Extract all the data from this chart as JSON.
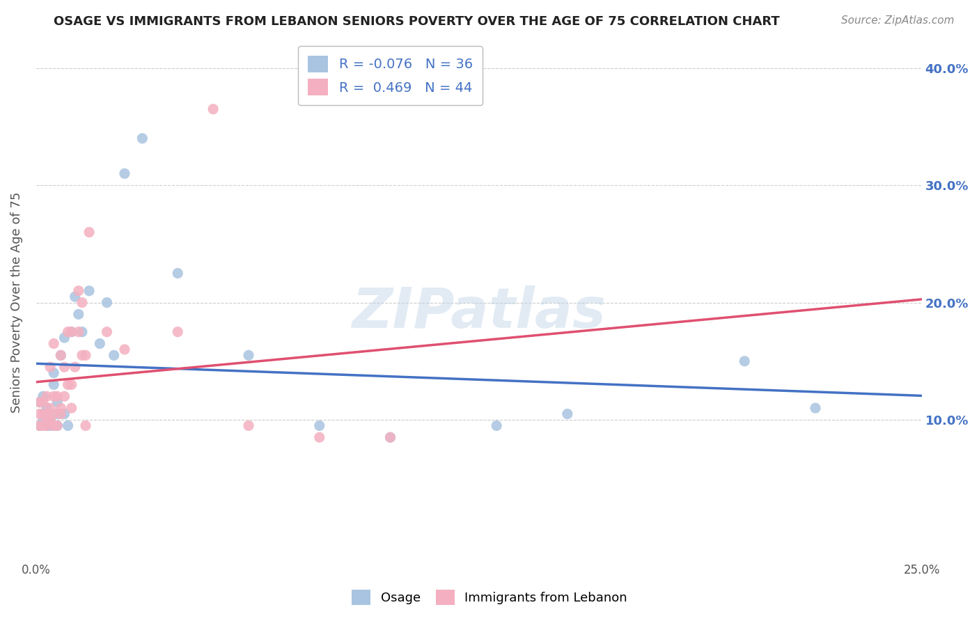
{
  "title": "OSAGE VS IMMIGRANTS FROM LEBANON SENIORS POVERTY OVER THE AGE OF 75 CORRELATION CHART",
  "source": "Source: ZipAtlas.com",
  "ylabel": "Seniors Poverty Over the Age of 75",
  "series": [
    {
      "name": "Osage",
      "R": -0.076,
      "N": 36,
      "color": "#a8c4e0",
      "line_color": "#4472c4",
      "line_style": "-",
      "x": [
        0.001,
        0.001,
        0.002,
        0.002,
        0.003,
        0.003,
        0.003,
        0.004,
        0.004,
        0.005,
        0.005,
        0.006,
        0.006,
        0.006,
        0.007,
        0.008,
        0.008,
        0.009,
        0.01,
        0.011,
        0.012,
        0.013,
        0.015,
        0.018,
        0.02,
        0.022,
        0.025,
        0.03,
        0.04,
        0.06,
        0.08,
        0.1,
        0.13,
        0.15,
        0.2,
        0.22
      ],
      "y": [
        0.115,
        0.095,
        0.1,
        0.12,
        0.095,
        0.105,
        0.11,
        0.1,
        0.095,
        0.13,
        0.14,
        0.105,
        0.095,
        0.115,
        0.155,
        0.105,
        0.17,
        0.095,
        0.175,
        0.205,
        0.19,
        0.175,
        0.21,
        0.165,
        0.2,
        0.155,
        0.31,
        0.34,
        0.225,
        0.155,
        0.095,
        0.085,
        0.095,
        0.105,
        0.15,
        0.11
      ]
    },
    {
      "name": "Immigrants from Lebanon",
      "R": 0.469,
      "N": 44,
      "color": "#f4b0c0",
      "line_color": "#e05070",
      "line_style": "-",
      "x": [
        0.001,
        0.001,
        0.001,
        0.002,
        0.002,
        0.002,
        0.003,
        0.003,
        0.003,
        0.003,
        0.004,
        0.004,
        0.004,
        0.005,
        0.005,
        0.005,
        0.005,
        0.006,
        0.006,
        0.007,
        0.007,
        0.007,
        0.008,
        0.008,
        0.009,
        0.009,
        0.01,
        0.01,
        0.01,
        0.011,
        0.012,
        0.012,
        0.013,
        0.013,
        0.014,
        0.014,
        0.015,
        0.02,
        0.025,
        0.04,
        0.05,
        0.06,
        0.08,
        0.1
      ],
      "y": [
        0.115,
        0.095,
        0.105,
        0.105,
        0.095,
        0.115,
        0.1,
        0.105,
        0.095,
        0.12,
        0.1,
        0.11,
        0.145,
        0.095,
        0.105,
        0.12,
        0.165,
        0.095,
        0.12,
        0.11,
        0.105,
        0.155,
        0.12,
        0.145,
        0.175,
        0.13,
        0.11,
        0.13,
        0.175,
        0.145,
        0.175,
        0.21,
        0.2,
        0.155,
        0.095,
        0.155,
        0.26,
        0.175,
        0.16,
        0.175,
        0.365,
        0.095,
        0.085,
        0.085
      ]
    }
  ],
  "xlim": [
    0.0,
    0.25
  ],
  "ylim": [
    -0.02,
    0.42
  ],
  "yticks": [
    0.1,
    0.2,
    0.3,
    0.4
  ],
  "ytick_labels": [
    "10.0%",
    "20.0%",
    "30.0%",
    "40.0%"
  ],
  "xticks": [
    0.0,
    0.05,
    0.1,
    0.15,
    0.2,
    0.25
  ],
  "xtick_labels": [
    "0.0%",
    "",
    "",
    "",
    "",
    "25.0%"
  ],
  "watermark": "ZIPatlas",
  "background_color": "#ffffff",
  "grid_color": "#cccccc",
  "title_color": "#222222",
  "axis_label_color": "#555555",
  "legend_R_color": "#4472c4"
}
